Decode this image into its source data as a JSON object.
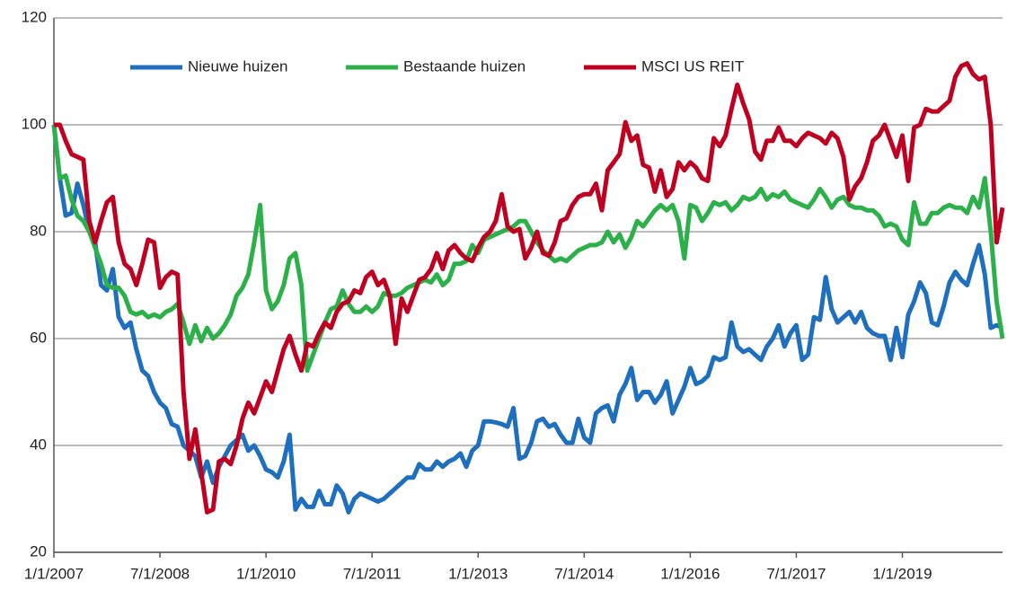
{
  "chart_data": {
    "type": "line",
    "categories": [
      "1/1/2007",
      null,
      null,
      null,
      null,
      null,
      null,
      null,
      null,
      null,
      null,
      null,
      null,
      null,
      null,
      null,
      null,
      null,
      "7/1/2008",
      null,
      null,
      null,
      null,
      null,
      null,
      null,
      null,
      null,
      null,
      null,
      null,
      null,
      null,
      null,
      null,
      null,
      "1/1/2010",
      null,
      null,
      null,
      null,
      null,
      null,
      null,
      null,
      null,
      null,
      null,
      null,
      null,
      null,
      null,
      null,
      null,
      "7/1/2011",
      null,
      null,
      null,
      null,
      null,
      null,
      null,
      null,
      null,
      null,
      null,
      null,
      null,
      null,
      null,
      null,
      null,
      "1/1/2013",
      null,
      null,
      null,
      null,
      null,
      null,
      null,
      null,
      null,
      null,
      null,
      null,
      null,
      null,
      null,
      null,
      null,
      "7/1/2014",
      null,
      null,
      null,
      null,
      null,
      null,
      null,
      null,
      null,
      null,
      null,
      null,
      null,
      null,
      null,
      null,
      null,
      "1/1/2016",
      null,
      null,
      null,
      null,
      null,
      null,
      null,
      null,
      null,
      null,
      null,
      null,
      null,
      null,
      null,
      null,
      null,
      "7/1/2017",
      null,
      null,
      null,
      null,
      null,
      null,
      null,
      null,
      null,
      null,
      null,
      null,
      null,
      null,
      null,
      null,
      null,
      "1/1/2019",
      null,
      null,
      null,
      null,
      null,
      null,
      null,
      null,
      null,
      null,
      null,
      null,
      null,
      null,
      null,
      null,
      null
    ],
    "series": [
      {
        "name": "Nieuwe huizen",
        "color": "#1f6fbf",
        "values": [
          100,
          90,
          83,
          83.5,
          89,
          85,
          80,
          78,
          70,
          69,
          73,
          64,
          62,
          63,
          58,
          54,
          53,
          50,
          48,
          47,
          44,
          43.5,
          40,
          39,
          38,
          34,
          37,
          33,
          36,
          38,
          40,
          41,
          42,
          39,
          40,
          38,
          35.5,
          35,
          34,
          37,
          42,
          28,
          30,
          28.5,
          28.5,
          31.5,
          29,
          29,
          32.5,
          31,
          27.5,
          30,
          31,
          30.5,
          30,
          29.5,
          30,
          31,
          32,
          33,
          34,
          34,
          36.5,
          35.5,
          35.5,
          37,
          36,
          37,
          37.5,
          38.5,
          36,
          39,
          40,
          44.5,
          44.5,
          44.3,
          44,
          43.5,
          47,
          37.5,
          38,
          40.5,
          44.5,
          45,
          43.5,
          44,
          42,
          40.5,
          40.5,
          45,
          41.5,
          40.5,
          46,
          47,
          47.5,
          44.5,
          49.5,
          51.5,
          54.5,
          48.5,
          50,
          50,
          48,
          49.5,
          52,
          46,
          48.5,
          51,
          54.5,
          51.5,
          52,
          53,
          56.5,
          56,
          56.5,
          63,
          58.5,
          57.5,
          58,
          57,
          56,
          58.5,
          60,
          62.5,
          58.5,
          61,
          62.5,
          56,
          57,
          64,
          63.5,
          71.5,
          65.5,
          63,
          64,
          65,
          63,
          65,
          62,
          61,
          60.5,
          60.5,
          56,
          62,
          56.5,
          64.5,
          67,
          70.5,
          68.5,
          63,
          62.5,
          66,
          70.5,
          72.5,
          71,
          70,
          74,
          77.5,
          72,
          62,
          62.5,
          62
        ]
      },
      {
        "name": "Bestaande huizen",
        "color": "#2bb04a",
        "values": [
          100,
          90,
          90.5,
          86,
          83,
          82,
          80,
          77,
          74,
          70,
          69.5,
          69.5,
          68,
          65,
          64.5,
          65,
          64,
          64.5,
          64,
          65,
          65.5,
          66.5,
          63,
          59,
          62.5,
          59.5,
          62,
          60,
          61,
          62.5,
          64.5,
          68,
          69.5,
          72,
          78,
          85,
          69,
          65.5,
          67,
          70,
          75,
          76,
          70,
          54,
          57,
          60,
          63,
          65.5,
          66,
          69,
          66.5,
          65,
          65,
          66,
          65,
          66,
          68.5,
          68,
          68,
          68.5,
          69.5,
          70,
          70.5,
          71,
          70.5,
          72,
          70,
          71,
          74,
          74,
          74.5,
          77.5,
          76,
          78.5,
          79,
          79.5,
          80,
          80.5,
          81,
          82,
          82,
          80,
          78,
          76.5,
          75.5,
          74.5,
          75,
          74.5,
          75.5,
          76.5,
          77,
          77.5,
          77.5,
          78,
          80,
          78,
          79.5,
          77,
          79,
          82,
          81,
          82.5,
          84,
          85,
          84,
          85,
          82,
          75,
          85,
          84.5,
          82,
          83.5,
          85.5,
          85,
          85.5,
          84,
          85,
          86.5,
          86,
          86.5,
          88,
          86,
          87,
          86.5,
          87.5,
          86,
          85.5,
          85,
          84.5,
          86,
          88,
          86.5,
          84.5,
          86,
          86.5,
          85,
          84.5,
          84.5,
          84,
          84,
          83,
          81,
          81.5,
          81,
          78.5,
          77.5,
          85.5,
          81.5,
          81.5,
          83.5,
          83.5,
          84.5,
          85,
          84.5,
          84.5,
          83.5,
          86.5,
          84.5,
          90,
          80,
          67,
          60
        ]
      },
      {
        "name": "MSCI US REIT",
        "color": "#c00020",
        "values": [
          100,
          100,
          97,
          94.5,
          94,
          93.5,
          82,
          78,
          82,
          85.5,
          86.5,
          78,
          74,
          73,
          70,
          74,
          78.5,
          78,
          69.5,
          71.5,
          72.5,
          72,
          50,
          37.5,
          43,
          35,
          27.5,
          28,
          37,
          37.5,
          36.5,
          40,
          45,
          48,
          46,
          49,
          52,
          50,
          54,
          58,
          60.5,
          57,
          54,
          59,
          58.5,
          61,
          63,
          62,
          65,
          66.5,
          67,
          69,
          68.5,
          71.5,
          72.5,
          70,
          71,
          68,
          59,
          67.5,
          65,
          68,
          71,
          71.5,
          73,
          76,
          73,
          76.5,
          77.5,
          76,
          75,
          74.5,
          77,
          79,
          80,
          82,
          87,
          81,
          80,
          80.5,
          75,
          77,
          80,
          76,
          75.5,
          78,
          82,
          82.5,
          85,
          86.5,
          87,
          87,
          89,
          84,
          91.5,
          93,
          94.5,
          100.5,
          97,
          98,
          92.5,
          92,
          87.5,
          91.5,
          86.5,
          88,
          93,
          91.5,
          93,
          92,
          90,
          89.5,
          97.5,
          96,
          98,
          103,
          107.5,
          104,
          101,
          95,
          93.5,
          97,
          97,
          99.5,
          97,
          97,
          96,
          97.5,
          98.5,
          98,
          97.5,
          96.5,
          98.5,
          97.5,
          94,
          86,
          88.5,
          90,
          93,
          97,
          98,
          100,
          97,
          94,
          98,
          89.5,
          99.5,
          100,
          103,
          102.5,
          102.5,
          103.5,
          104.5,
          109,
          111,
          111.5,
          109.5,
          108.5,
          109,
          100,
          78,
          84.5
        ]
      }
    ],
    "ylim": [
      20,
      120
    ],
    "yticks": [
      20,
      40,
      60,
      80,
      100,
      120
    ],
    "grid": true,
    "legend": "top"
  }
}
